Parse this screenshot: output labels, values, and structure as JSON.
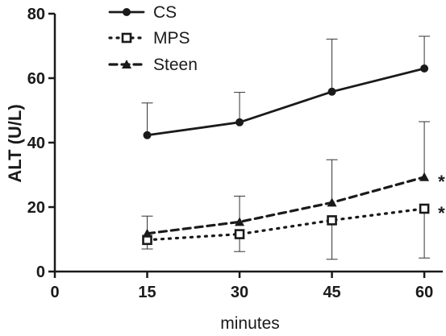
{
  "chart_data": {
    "type": "line",
    "title": "",
    "xlabel": "minutes",
    "ylabel": "ALT (U/L)",
    "x": [
      15,
      30,
      45,
      60
    ],
    "xlim": [
      0,
      63
    ],
    "ylim": [
      0,
      80
    ],
    "xticks": [
      "0",
      "15",
      "30",
      "45",
      "60"
    ],
    "yticks": [
      "0",
      "20",
      "40",
      "60",
      "80"
    ],
    "grid": false,
    "legend_position": "top-left",
    "series": [
      {
        "name": "CS",
        "values": [
          42.3,
          46.3,
          55.8,
          63.0
        ],
        "error_up": [
          10.0,
          9.3,
          16.3,
          10.0
        ],
        "marker": "circle",
        "line_style": "solid",
        "color": "#1a1a1a"
      },
      {
        "name": "MPS",
        "values": [
          9.8,
          11.6,
          15.9,
          19.5
        ],
        "error_up": [
          0,
          0,
          0,
          0
        ],
        "error_down": [
          2.8,
          5.4,
          12.1,
          15.3
        ],
        "marker": "open-square",
        "line_style": "dotted",
        "color": "#1a1a1a"
      },
      {
        "name": "Steen",
        "values": [
          11.8,
          15.4,
          21.4,
          29.3
        ],
        "error_up": [
          5.4,
          8.0,
          13.3,
          17.2
        ],
        "marker": "triangle",
        "line_style": "dashed",
        "color": "#1a1a1a"
      }
    ],
    "annotations": [
      {
        "text": "*",
        "x": 60,
        "y": 29.3,
        "series": "Steen"
      },
      {
        "text": "*",
        "x": 60,
        "y": 19.5,
        "series": "MPS"
      }
    ]
  }
}
